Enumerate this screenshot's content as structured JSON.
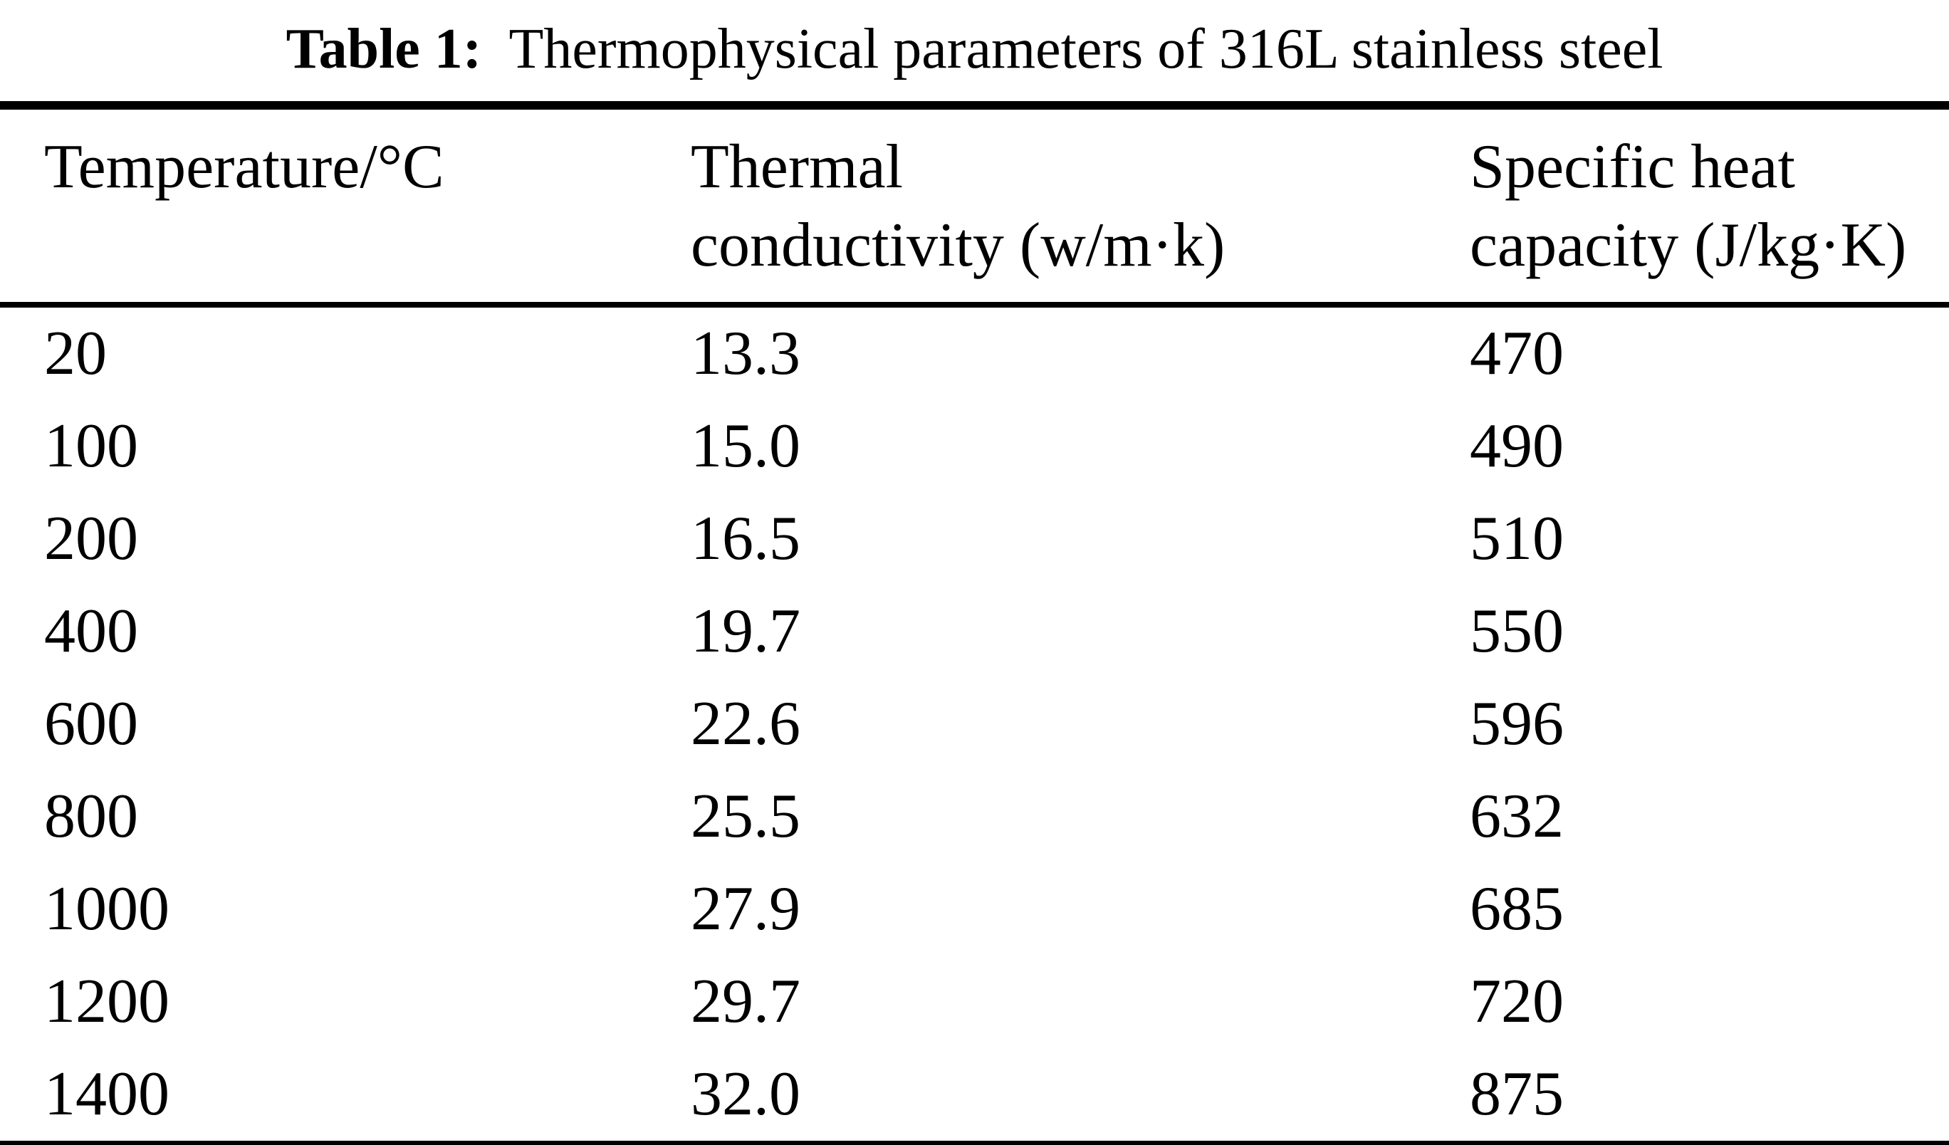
{
  "table": {
    "title_label": "Table 1:",
    "title_text": "Thermophysical parameters of 316L stainless steel",
    "columns": [
      {
        "line1": "Temperature/°C",
        "line2": ""
      },
      {
        "line1": "Thermal",
        "line2": "conductivity (w/m·k)"
      },
      {
        "line1": "Specific heat",
        "line2": "capacity (J/kg·K)"
      }
    ],
    "rows": [
      [
        "20",
        "13.3",
        "470"
      ],
      [
        "100",
        "15.0",
        "490"
      ],
      [
        "200",
        "16.5",
        "510"
      ],
      [
        "400",
        "19.7",
        "550"
      ],
      [
        "600",
        "22.6",
        "596"
      ],
      [
        "800",
        "25.5",
        "632"
      ],
      [
        "1000",
        "27.9",
        "685"
      ],
      [
        "1200",
        "29.7",
        "720"
      ],
      [
        "1400",
        "32.0",
        "875"
      ]
    ]
  },
  "colors": {
    "text": "#000000",
    "background": "#ffffff",
    "rule": "#000000"
  },
  "chart_data": {
    "type": "table",
    "title": "Table 1: Thermophysical parameters of 316L stainless steel",
    "columns": [
      "Temperature/°C",
      "Thermal conductivity (w/m·k)",
      "Specific heat capacity (J/kg·K)"
    ],
    "categories": [
      20,
      100,
      200,
      400,
      600,
      800,
      1000,
      1200,
      1400
    ],
    "series": [
      {
        "name": "Thermal conductivity (w/m·k)",
        "values": [
          13.3,
          15.0,
          16.5,
          19.7,
          22.6,
          25.5,
          27.9,
          29.7,
          32.0
        ]
      },
      {
        "name": "Specific heat capacity (J/kg·K)",
        "values": [
          470,
          490,
          510,
          550,
          596,
          632,
          685,
          720,
          875
        ]
      }
    ]
  }
}
